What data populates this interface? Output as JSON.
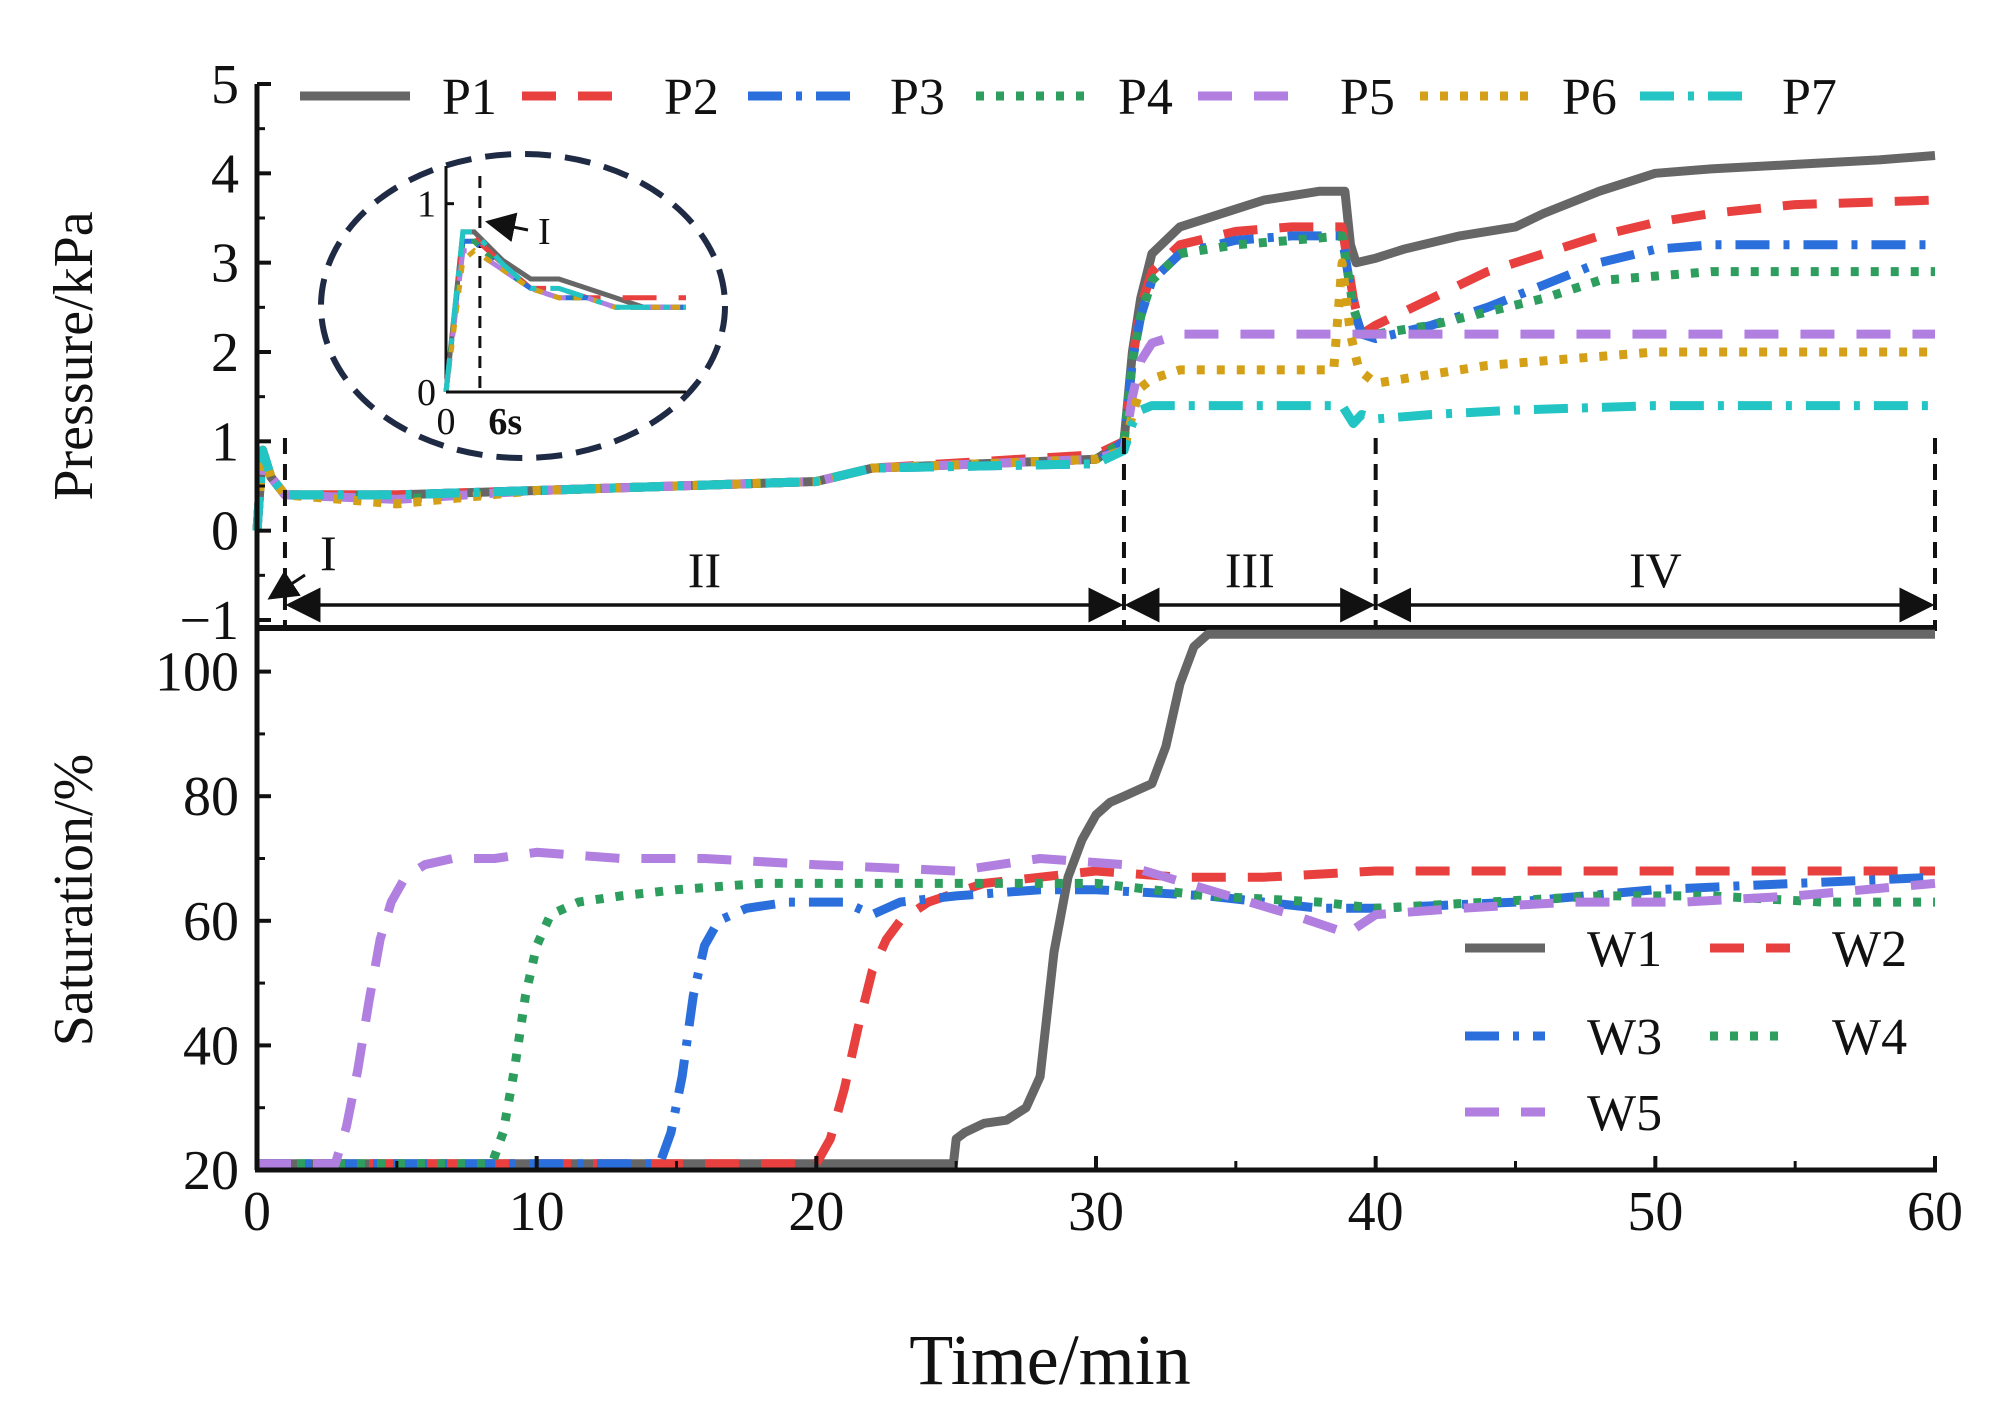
{
  "chart_data": [
    {
      "id": "pressure",
      "type": "line",
      "ylabel": "Pressure/kPa",
      "xlim": [
        0,
        60
      ],
      "ylim": [
        -1,
        5
      ],
      "yticks": [
        -1,
        0,
        1,
        2,
        3,
        4,
        5
      ],
      "ytick_labels": [
        "−1",
        "0",
        "1",
        "2",
        "3",
        "4",
        "5"
      ],
      "legend_position": "top",
      "series": [
        {
          "name": "P1",
          "color": "#666666",
          "style": "solid",
          "x": [
            0,
            0.2,
            0.5,
            1,
            5,
            10,
            15,
            20,
            22,
            30,
            31,
            31.3,
            31.6,
            32,
            33,
            35,
            36,
            37,
            38,
            38.9,
            39.1,
            39.3,
            40,
            41,
            43,
            45,
            46,
            48,
            50,
            52,
            55,
            58,
            60
          ],
          "y": [
            0,
            0.9,
            0.6,
            0.4,
            0.4,
            0.45,
            0.5,
            0.55,
            0.7,
            0.8,
            1.0,
            2.0,
            2.6,
            3.1,
            3.4,
            3.6,
            3.7,
            3.75,
            3.8,
            3.8,
            3.2,
            3.0,
            3.05,
            3.15,
            3.3,
            3.4,
            3.55,
            3.8,
            4.0,
            4.05,
            4.1,
            4.15,
            4.2
          ]
        },
        {
          "name": "P2",
          "color": "#e8403f",
          "style": "dash",
          "x": [
            0,
            0.2,
            0.5,
            1,
            5,
            10,
            15,
            20,
            22,
            30,
            31,
            31.3,
            31.6,
            32,
            33,
            35,
            37,
            38.8,
            39.2,
            39.5,
            40,
            42,
            44,
            46,
            48,
            50,
            52,
            55,
            60
          ],
          "y": [
            0,
            0.9,
            0.6,
            0.4,
            0.4,
            0.45,
            0.5,
            0.55,
            0.7,
            0.85,
            1.0,
            1.9,
            2.5,
            2.9,
            3.2,
            3.35,
            3.4,
            3.4,
            2.6,
            2.2,
            2.3,
            2.6,
            2.9,
            3.1,
            3.3,
            3.45,
            3.55,
            3.65,
            3.7
          ]
        },
        {
          "name": "P3",
          "color": "#2a6fdb",
          "style": "dashdot",
          "x": [
            0,
            0.2,
            0.5,
            1,
            5,
            10,
            15,
            20,
            22,
            30,
            31,
            31.3,
            31.6,
            32,
            33,
            35,
            37,
            38.8,
            39.2,
            39.5,
            40,
            42,
            44,
            46,
            48,
            50,
            52,
            55,
            60
          ],
          "y": [
            0,
            0.9,
            0.6,
            0.4,
            0.4,
            0.45,
            0.5,
            0.55,
            0.7,
            0.75,
            1.0,
            1.9,
            2.4,
            2.8,
            3.1,
            3.25,
            3.3,
            3.3,
            2.5,
            2.2,
            2.15,
            2.3,
            2.5,
            2.75,
            3.0,
            3.15,
            3.2,
            3.2,
            3.2
          ]
        },
        {
          "name": "P4",
          "color": "#2e9e5e",
          "style": "dot",
          "x": [
            0,
            0.2,
            0.5,
            1,
            5,
            10,
            15,
            20,
            22,
            30,
            31,
            31.3,
            31.6,
            32,
            33,
            35,
            37,
            38.8,
            39.2,
            39.5,
            40,
            42,
            44,
            46,
            48,
            50,
            52,
            55,
            60
          ],
          "y": [
            0,
            0.9,
            0.6,
            0.4,
            0.35,
            0.45,
            0.5,
            0.55,
            0.7,
            0.8,
            1.0,
            1.9,
            2.4,
            2.8,
            3.1,
            3.2,
            3.25,
            3.3,
            2.5,
            2.2,
            2.2,
            2.3,
            2.45,
            2.6,
            2.8,
            2.85,
            2.9,
            2.9,
            2.9
          ]
        },
        {
          "name": "P5",
          "color": "#b07fe0",
          "style": "dash",
          "x": [
            0,
            0.2,
            0.5,
            1,
            5,
            10,
            15,
            20,
            22,
            30,
            31,
            31.3,
            31.6,
            32,
            33,
            35,
            38.8,
            39.2,
            40,
            45,
            50,
            55,
            60
          ],
          "y": [
            0,
            0.9,
            0.6,
            0.4,
            0.35,
            0.45,
            0.5,
            0.55,
            0.7,
            0.8,
            0.9,
            1.5,
            1.9,
            2.1,
            2.2,
            2.2,
            2.2,
            2.2,
            2.2,
            2.2,
            2.2,
            2.2,
            2.2
          ]
        },
        {
          "name": "P6",
          "color": "#d4a017",
          "style": "dot",
          "x": [
            0,
            0.2,
            0.5,
            1,
            5,
            10,
            15,
            20,
            22,
            30,
            31,
            31.3,
            31.6,
            32,
            33,
            35,
            38.5,
            38.8,
            39.1,
            39.4,
            40,
            42,
            44,
            46,
            48,
            50,
            52,
            55,
            60
          ],
          "y": [
            0,
            0.9,
            0.6,
            0.4,
            0.3,
            0.45,
            0.5,
            0.55,
            0.7,
            0.8,
            0.9,
            1.3,
            1.6,
            1.7,
            1.8,
            1.8,
            1.8,
            3.0,
            2.2,
            1.8,
            1.65,
            1.75,
            1.85,
            1.9,
            1.95,
            2.0,
            2.0,
            2.0,
            2.0
          ]
        },
        {
          "name": "P7",
          "color": "#22c4c4",
          "style": "dashdot",
          "x": [
            0,
            0.2,
            0.5,
            1,
            5,
            10,
            15,
            20,
            22,
            30,
            31,
            31.3,
            31.6,
            32,
            33,
            35,
            38.8,
            39.2,
            39.5,
            40,
            42,
            45,
            50,
            55,
            60
          ],
          "y": [
            0,
            0.9,
            0.6,
            0.4,
            0.4,
            0.45,
            0.5,
            0.55,
            0.7,
            0.75,
            0.9,
            1.2,
            1.35,
            1.4,
            1.4,
            1.4,
            1.4,
            1.2,
            1.3,
            1.25,
            1.3,
            1.35,
            1.4,
            1.4,
            1.4
          ]
        }
      ],
      "stages": {
        "boundaries": [
          0,
          1,
          31,
          40,
          60
        ],
        "labels": [
          "I",
          "II",
          "III",
          "IV"
        ],
        "arrow_y": -0.8
      },
      "inset": {
        "ytick_labels": [
          "0",
          "1"
        ],
        "xtick_labels": [
          "0",
          "6s"
        ],
        "marker_label": "I",
        "x": [
          0,
          0.6,
          1.0,
          2.0,
          3.0,
          4.0,
          5.0,
          6.0,
          7.0,
          8.5
        ],
        "series": [
          {
            "name": "P1",
            "y": [
              0,
              0.85,
              0.85,
              0.7,
              0.6,
              0.6,
              0.55,
              0.5,
              0.45,
              0.45
            ]
          },
          {
            "name": "P2",
            "y": [
              0,
              0.82,
              0.82,
              0.68,
              0.55,
              0.55,
              0.5,
              0.5,
              0.5,
              0.5
            ]
          },
          {
            "name": "P3",
            "y": [
              0,
              0.8,
              0.8,
              0.65,
              0.55,
              0.5,
              0.5,
              0.45,
              0.45,
              0.45
            ]
          },
          {
            "name": "P4",
            "y": [
              0,
              0.8,
              0.8,
              0.65,
              0.55,
              0.5,
              0.5,
              0.45,
              0.45,
              0.45
            ]
          },
          {
            "name": "P5",
            "y": [
              0,
              0.75,
              0.75,
              0.65,
              0.55,
              0.5,
              0.5,
              0.45,
              0.45,
              0.45
            ]
          },
          {
            "name": "P6",
            "y": [
              0,
              0.7,
              0.75,
              0.65,
              0.55,
              0.5,
              0.5,
              0.45,
              0.45,
              0.45
            ]
          },
          {
            "name": "P7",
            "y": [
              0,
              0.85,
              0.85,
              0.68,
              0.55,
              0.55,
              0.5,
              0.45,
              0.45,
              0.45
            ]
          }
        ]
      }
    },
    {
      "id": "saturation",
      "type": "line",
      "xlabel": "Time/min",
      "ylabel": "Saturation/%",
      "xlim": [
        0,
        60
      ],
      "ylim": [
        20,
        107
      ],
      "xticks": [
        0,
        10,
        20,
        30,
        40,
        50,
        60
      ],
      "xtick_labels": [
        "0",
        "10",
        "20",
        "30",
        "40",
        "50",
        "60"
      ],
      "yticks": [
        20,
        40,
        60,
        80,
        100
      ],
      "ytick_labels": [
        "20",
        "40",
        "60",
        "80",
        "100"
      ],
      "legend_position": "lower-right",
      "series": [
        {
          "name": "W1",
          "color": "#666666",
          "style": "solid",
          "x": [
            0,
            24.9,
            25.0,
            25.3,
            26,
            26.8,
            27.5,
            28.0,
            28.5,
            29.0,
            29.5,
            30.0,
            30.5,
            31.0,
            32.0,
            32.5,
            33.0,
            33.5,
            34.0,
            36,
            40,
            45,
            50,
            55,
            60
          ],
          "y": [
            21,
            21,
            25,
            26,
            27.5,
            28,
            30,
            35,
            55,
            67,
            73,
            77,
            79,
            80,
            82,
            88,
            98,
            104,
            106,
            106,
            106,
            106,
            106,
            106,
            106
          ]
        },
        {
          "name": "W2",
          "color": "#e8403f",
          "style": "dash",
          "x": [
            0,
            20.0,
            20.5,
            21.0,
            21.5,
            22.0,
            22.5,
            23.0,
            24.0,
            26.0,
            28.0,
            30.0,
            33.0,
            36.0,
            40.0,
            45.0,
            50.0,
            55.0,
            60.0
          ],
          "y": [
            21,
            21,
            25,
            33,
            43,
            52,
            57,
            60,
            63,
            66,
            67,
            68,
            67,
            67,
            68,
            68,
            68,
            68,
            68
          ]
        },
        {
          "name": "W3",
          "color": "#2a6fdb",
          "style": "dashdot",
          "x": [
            0,
            14.4,
            14.8,
            15.2,
            15.6,
            16.0,
            16.5,
            17.5,
            19.0,
            21.0,
            22.0,
            22.5,
            23.0,
            25.0,
            28.0,
            30.0,
            34.0,
            38.0,
            40.0,
            45.0,
            50.0,
            55.0,
            60.0
          ],
          "y": [
            21,
            21,
            26,
            35,
            48,
            56,
            60,
            62,
            63,
            63,
            61,
            62,
            63,
            64,
            65,
            65,
            64,
            62,
            62,
            63,
            65,
            66,
            67
          ]
        },
        {
          "name": "W4",
          "color": "#2e9e5e",
          "style": "dot",
          "x": [
            0,
            8.4,
            8.8,
            9.2,
            9.6,
            10.0,
            10.5,
            11.5,
            13.0,
            15.0,
            18.0,
            22.0,
            26.0,
            30.0,
            34.0,
            38.0,
            40.0,
            44.0,
            48.0,
            52.0,
            56.0,
            60.0
          ],
          "y": [
            21,
            21,
            26,
            36,
            48,
            56,
            61,
            63,
            64,
            65,
            66,
            66,
            66,
            66,
            64,
            63,
            62,
            63,
            64,
            64,
            63,
            63
          ]
        },
        {
          "name": "W5",
          "color": "#b07fe0",
          "style": "dash",
          "x": [
            0,
            2.8,
            3.2,
            3.6,
            4.0,
            4.4,
            4.8,
            5.3,
            6.0,
            7.0,
            8.5,
            10.0,
            13.0,
            16.0,
            20.0,
            25.0,
            28.0,
            31.0,
            34.0,
            37.0,
            39.0,
            40.0,
            43.0,
            47.0,
            51.0,
            55.0,
            60.0
          ],
          "y": [
            21,
            21,
            27,
            36,
            47,
            57,
            63,
            67,
            69,
            70,
            70,
            71,
            70,
            70,
            69,
            68,
            70,
            69,
            65,
            61,
            58,
            61,
            62,
            63,
            63,
            64,
            66
          ]
        }
      ]
    }
  ]
}
